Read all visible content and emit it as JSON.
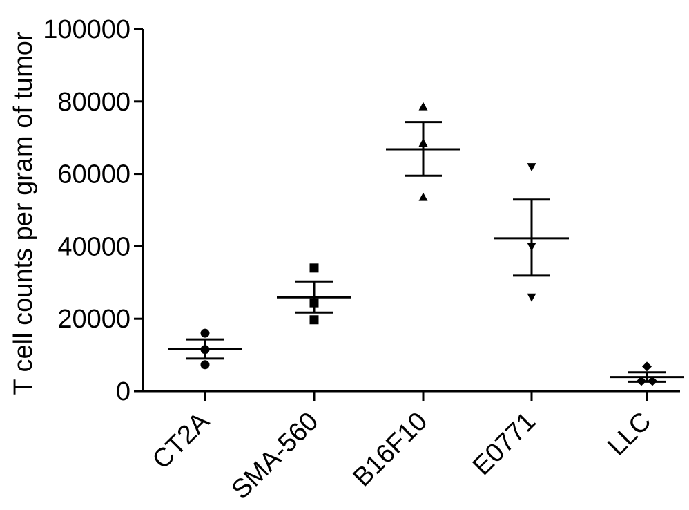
{
  "chart_data": {
    "type": "scatter",
    "title": "",
    "xlabel": "",
    "ylabel": "T cell counts per gram of tumor",
    "ylim": [
      0,
      100000
    ],
    "yticks": [
      0,
      20000,
      40000,
      60000,
      80000,
      100000
    ],
    "ytick_labels": [
      "0",
      "20000",
      "40000",
      "60000",
      "80000",
      "100000"
    ],
    "grid": false,
    "legend": "none",
    "categories": [
      "CT2A",
      "SMA-560",
      "B16F10",
      "E0771",
      "LLC"
    ],
    "groups": [
      {
        "category": "CT2A",
        "marker": "circle",
        "values": [
          16000,
          11500,
          7300
        ],
        "mean": 11600,
        "sem_upper": 14300,
        "sem_lower": 9000
      },
      {
        "category": "SMA-560",
        "marker": "square",
        "values": [
          34000,
          24400,
          19700
        ],
        "mean": 25900,
        "sem_upper": 30300,
        "sem_lower": 21700
      },
      {
        "category": "B16F10",
        "marker": "triangle-up",
        "values": [
          78500,
          68500,
          53500
        ],
        "mean": 66800,
        "sem_upper": 74300,
        "sem_lower": 59500
      },
      {
        "category": "E0771",
        "marker": "triangle-down",
        "values": [
          62000,
          40000,
          26000
        ],
        "mean": 42200,
        "sem_upper": 52900,
        "sem_lower": 31900
      },
      {
        "category": "LLC",
        "marker": "diamond",
        "values": [
          6800,
          2800,
          2800
        ],
        "mean": 3900,
        "sem_upper": 5200,
        "sem_lower": 2600
      }
    ],
    "colors": {
      "points": "#000000",
      "lines": "#000000"
    }
  }
}
